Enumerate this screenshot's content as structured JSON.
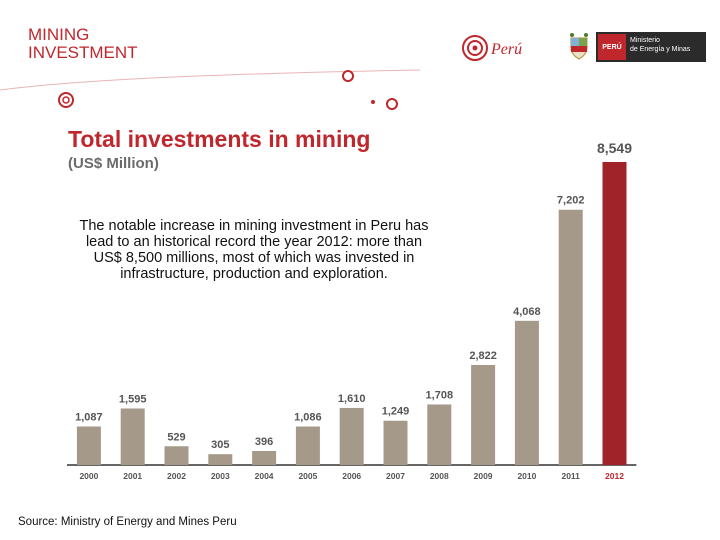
{
  "header": {
    "line1": "MINING",
    "line2": "INVESTMENT"
  },
  "branding": {
    "peru_logo_text": "Perú",
    "gov_country": "PERÚ",
    "gov_ministry_line1": "Ministerio",
    "gov_ministry_line2": "de Energía y Minas"
  },
  "note": "The notable increase in mining investment in Peru has lead to an historical record the year 2012: more than US$ 8,500 millions, most of which was invested in infrastructure, production and exploration.",
  "source": "Source: Ministry of Energy and Mines Peru",
  "colors": {
    "brand_red": "#c0272d",
    "bar": "#a59a8a",
    "highlight_bar": "#a0232a",
    "axis": "#333333"
  },
  "chart_data": {
    "type": "bar",
    "title": "Total investments in mining",
    "subtitle": "(US$ Million)",
    "categories": [
      "2000",
      "2001",
      "2002",
      "2003",
      "2004",
      "2005",
      "2006",
      "2007",
      "2008",
      "2009",
      "2010",
      "2011",
      "2012"
    ],
    "values": [
      1087,
      1595,
      529,
      305,
      396,
      1086,
      1610,
      1249,
      1708,
      2822,
      4068,
      7202,
      8549
    ],
    "value_labels": [
      "1,087",
      "1,595",
      "529",
      "305",
      "396",
      "1,086",
      "1,610",
      "1,249",
      "1,708",
      "2,822",
      "4,068",
      "7,202",
      "8,549"
    ],
    "highlight_index": 12,
    "ylim": [
      0,
      8549
    ],
    "grid": false,
    "legend": "none"
  }
}
